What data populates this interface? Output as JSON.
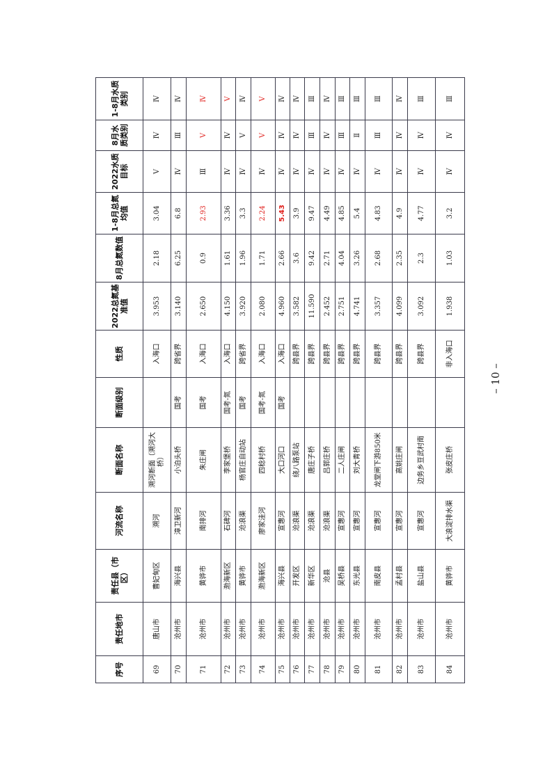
{
  "table": {
    "headers": [
      "序号",
      "责任地市",
      "责任县（市区）",
      "河流名称",
      "断面名称",
      "断面级别",
      "性质",
      "2022总氮基准值",
      "8月总氮数值",
      "1-8月总氮均值",
      "2022水质目标",
      "8月水质类别",
      "1-8月水质类别"
    ],
    "rows": [
      [
        "69",
        "唐山市",
        "曹妃甸区",
        "溯河",
        "溯河断面（溯河大桥）",
        "",
        "入海口",
        "3.953",
        "2.18",
        "3.04",
        "Ⅴ",
        "Ⅳ",
        "Ⅳ"
      ],
      [
        "70",
        "沧州市",
        "海兴县",
        "漳卫新河",
        "小泊头桥",
        "国考",
        "跨省界",
        "3.140",
        "6.25",
        "6.8",
        "Ⅳ",
        "Ⅲ",
        "Ⅳ"
      ],
      [
        "71",
        "沧州市",
        "黄骅市",
        "南排河",
        "朱庄闸",
        "国考",
        "入海口",
        "2.650",
        "0.9",
        "2.93",
        "Ⅲ",
        "Ⅴ",
        "Ⅳ"
      ],
      [
        "72",
        "沧州市",
        "渤海新区",
        "石碑河",
        "李家堡桥",
        "国考-氮",
        "入海口",
        "4.150",
        "1.61",
        "3.36",
        "Ⅳ",
        "Ⅳ",
        "Ⅴ"
      ],
      [
        "73",
        "沧州市",
        "黄骅市",
        "沧浪渠",
        "杨官庄自动站",
        "国考",
        "跨省界",
        "3.920",
        "1.96",
        "3.3",
        "Ⅳ",
        "Ⅴ",
        "Ⅳ"
      ],
      [
        "74",
        "沧州市",
        "渤海新区",
        "廖家洼河",
        "四稔村桥",
        "国考-氮",
        "入海口",
        "2.080",
        "1.71",
        "2.24",
        "Ⅳ",
        "Ⅴ",
        "Ⅴ"
      ],
      [
        "75",
        "沧州市",
        "海兴县",
        "宣惠河",
        "大口河口",
        "国考",
        "入海口",
        "4.960",
        "2.66",
        "5.43",
        "Ⅳ",
        "Ⅳ",
        "Ⅳ"
      ],
      [
        "76",
        "沧州市",
        "开发区",
        "沧浪渠",
        "绕八路泵站",
        "",
        "跨县界",
        "3.582",
        "3.6",
        "3.9",
        "Ⅳ",
        "Ⅳ",
        "Ⅳ"
      ],
      [
        "77",
        "沧州市",
        "新华区",
        "沧浪渠",
        "唐庄子桥",
        "",
        "跨县界",
        "11.590",
        "9.42",
        "9.47",
        "Ⅳ",
        "Ⅲ",
        "Ⅲ"
      ],
      [
        "78",
        "沧州市",
        "沧县",
        "沧浪渠",
        "吕郭庄桥",
        "",
        "跨县界",
        "2.452",
        "2.71",
        "4.49",
        "Ⅳ",
        "Ⅳ",
        "Ⅳ"
      ],
      [
        "79",
        "沧州市",
        "吴桥县",
        "宣惠河",
        "二人庄闸",
        "",
        "跨县界",
        "2.751",
        "4.04",
        "4.85",
        "Ⅳ",
        "Ⅲ",
        "Ⅲ"
      ],
      [
        "80",
        "沧州市",
        "东光县",
        "宣惠河",
        "刘大青桥",
        "",
        "跨县界",
        "4.741",
        "3.26",
        "5.4",
        "Ⅳ",
        "Ⅱ",
        "Ⅲ"
      ],
      [
        "81",
        "沧州市",
        "南皮县",
        "宣惠河",
        "龙堂闸下游850米",
        "",
        "跨县界",
        "3.357",
        "2.68",
        "4.83",
        "Ⅳ",
        "Ⅲ",
        "Ⅲ"
      ],
      [
        "82",
        "沧州市",
        "孟村县",
        "宣惠河",
        "高姚庄闸",
        "",
        "跨县界",
        "4.099",
        "2.35",
        "4.9",
        "Ⅳ",
        "Ⅳ",
        "Ⅳ"
      ],
      [
        "83",
        "沧州市",
        "盐山县",
        "宣惠河",
        "边务乡豆武村南",
        "",
        "跨县界",
        "3.092",
        "2.3",
        "4.77",
        "Ⅳ",
        "Ⅳ",
        "Ⅲ"
      ],
      [
        "84",
        "沧州市",
        "黄骅市",
        "大浪淀排水渠",
        "张皮庄桥",
        "",
        "非入海口",
        "1.938",
        "1.03",
        "3.2",
        "Ⅳ",
        "Ⅳ",
        "Ⅲ"
      ]
    ],
    "highlight_color": "#e0201c",
    "highlighted_cells": [
      [
        2,
        9
      ],
      [
        2,
        11
      ],
      [
        2,
        12
      ],
      [
        3,
        12
      ],
      [
        5,
        9
      ],
      [
        5,
        11
      ],
      [
        5,
        12
      ]
    ],
    "bold_highlighted_cells": [
      [
        6,
        9
      ]
    ]
  },
  "page_number": "– 10 –"
}
